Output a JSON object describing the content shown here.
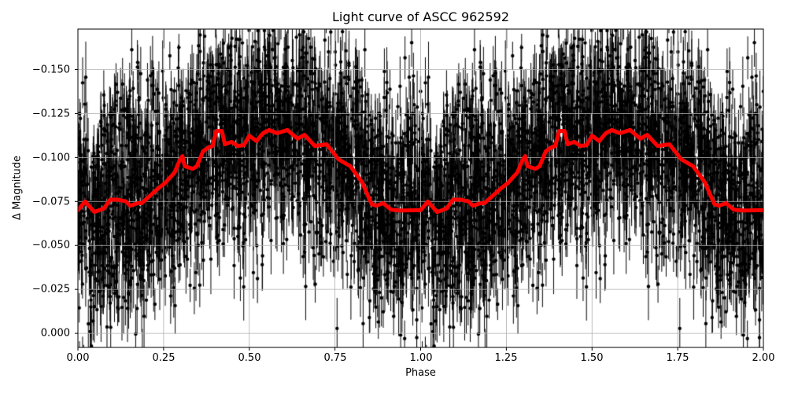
{
  "chart": {
    "title": "Light curve of ASCC 962592",
    "xlabel": "Phase",
    "ylabel": "Δ Magnitude",
    "xticks": [
      "0.00",
      "0.25",
      "0.50",
      "0.75",
      "1.00",
      "1.25",
      "1.50",
      "1.75",
      "2.00"
    ],
    "yticks": [
      "−0.150",
      "−0.125",
      "−0.100",
      "−0.075",
      "−0.050",
      "−0.025",
      "0.000"
    ]
  },
  "chart_data": {
    "type": "scatter",
    "title": "Light curve of ASCC 962592",
    "xlabel": "Phase",
    "ylabel": "Δ Magnitude",
    "xlim": [
      0.0,
      2.0
    ],
    "ylim": [
      0.008,
      -0.173
    ],
    "y_inverted": true,
    "grid": true,
    "xticks": [
      0.0,
      0.25,
      0.5,
      0.75,
      1.0,
      1.25,
      1.5,
      1.75,
      2.0
    ],
    "yticks": [
      -0.15,
      -0.125,
      -0.1,
      -0.075,
      -0.05,
      -0.025,
      0.0
    ],
    "colors": {
      "points": "#000000",
      "binned_curve": "#ff0000",
      "grid": "#b0b0b0"
    },
    "series": [
      {
        "name": "observations",
        "kind": "errorbar-scatter",
        "description": "Dense phase-folded photometry with vertical error bars, plotted twice (phase 0-2); scatter roughly ±0.06 mag around the binned curve",
        "approx_center_follows": "binned_mean",
        "approx_spread": 0.03,
        "approx_errorbar": 0.012
      },
      {
        "name": "binned_mean",
        "kind": "line",
        "x": [
          0.0,
          0.021,
          0.048,
          0.076,
          0.094,
          0.117,
          0.14,
          0.152,
          0.175,
          0.186,
          0.209,
          0.232,
          0.255,
          0.266,
          0.282,
          0.296,
          0.305,
          0.312,
          0.335,
          0.347,
          0.365,
          0.381,
          0.393,
          0.404,
          0.42,
          0.429,
          0.448,
          0.466,
          0.484,
          0.5,
          0.521,
          0.54,
          0.558,
          0.581,
          0.611,
          0.641,
          0.661,
          0.691,
          0.726,
          0.76,
          0.795,
          0.829,
          0.857,
          0.87,
          0.891,
          0.914,
          0.937,
          0.953,
          0.985
        ],
        "values": [
          -0.07,
          -0.075,
          -0.069,
          -0.071,
          -0.076,
          -0.076,
          -0.075,
          -0.0726,
          -0.074,
          -0.074,
          -0.078,
          -0.082,
          -0.0856,
          -0.088,
          -0.0914,
          -0.098,
          -0.1008,
          -0.095,
          -0.0936,
          -0.095,
          -0.1035,
          -0.1057,
          -0.1066,
          -0.1151,
          -0.1151,
          -0.1075,
          -0.1089,
          -0.1066,
          -0.107,
          -0.1124,
          -0.1093,
          -0.1138,
          -0.1156,
          -0.1138,
          -0.1156,
          -0.1107,
          -0.1129,
          -0.1066,
          -0.1075,
          -0.099,
          -0.095,
          -0.086,
          -0.0735,
          -0.0726,
          -0.074,
          -0.0703,
          -0.0699,
          -0.0699,
          -0.07
        ],
        "repeats_with_period": 1.0
      }
    ]
  }
}
